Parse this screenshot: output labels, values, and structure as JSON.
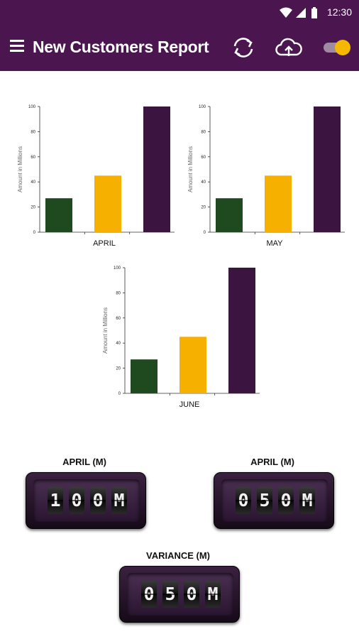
{
  "status_bar": {
    "time": "12:30"
  },
  "app_bar": {
    "title": "New Customers Report"
  },
  "chart_data": [
    {
      "type": "bar",
      "title": "APRIL",
      "xlabel": "APRIL",
      "ylabel": "Amount in Millions",
      "ylim": [
        0,
        100
      ],
      "yticks": [
        0,
        20,
        40,
        60,
        80,
        100
      ],
      "values": [
        27,
        45,
        100
      ],
      "colors": [
        "#1f4a1f",
        "#f5b000",
        "#3b1540"
      ]
    },
    {
      "type": "bar",
      "title": "MAY",
      "xlabel": "MAY",
      "ylabel": "Amount in Millions",
      "ylim": [
        0,
        100
      ],
      "yticks": [
        0,
        20,
        40,
        60,
        80,
        100
      ],
      "values": [
        27,
        45,
        100
      ],
      "colors": [
        "#1f4a1f",
        "#f5b000",
        "#3b1540"
      ]
    },
    {
      "type": "bar",
      "title": "JUNE",
      "xlabel": "JUNE",
      "ylabel": "Amount in Millions",
      "ylim": [
        0,
        100
      ],
      "yticks": [
        0,
        20,
        40,
        60,
        80,
        100
      ],
      "values": [
        27,
        45,
        100
      ],
      "colors": [
        "#1f4a1f",
        "#f5b000",
        "#3b1540"
      ]
    }
  ],
  "counters": [
    {
      "label": "APRIL (M)",
      "digits": [
        "1",
        "0",
        "0",
        "M"
      ]
    },
    {
      "label": "APRIL (M)",
      "digits": [
        "0",
        "5",
        "0",
        "M"
      ]
    },
    {
      "label": "VARIANCE (M)",
      "digits": [
        "0",
        "5",
        "0",
        "M"
      ]
    }
  ],
  "colors": {
    "primary": "#4b1650",
    "accent": "#f5b800"
  }
}
